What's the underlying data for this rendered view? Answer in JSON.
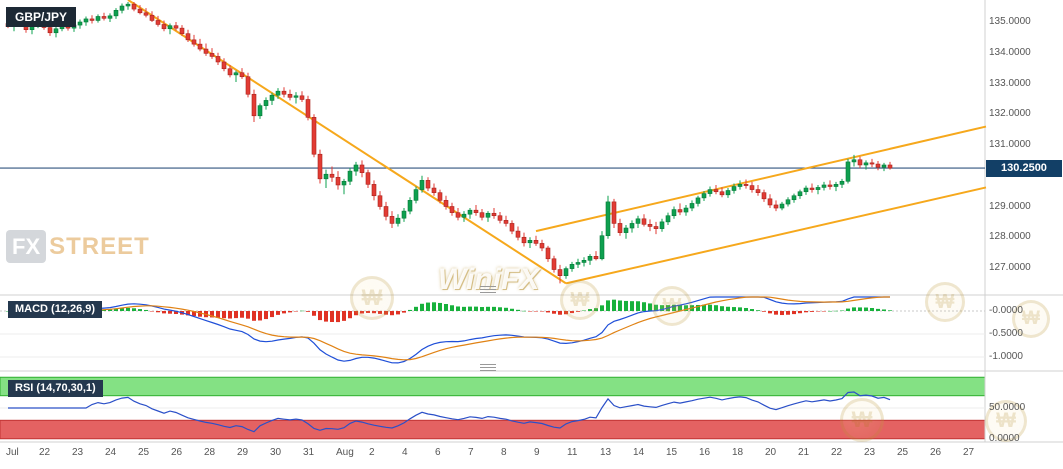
{
  "colors": {
    "up": "#0ea04f",
    "up_border": "#067a38",
    "down": "#e23b34",
    "down_border": "#a8231d",
    "trendline": "#f6a81c",
    "price_line": "#30557f",
    "price_badge_bg": "#123f66",
    "macd_line": "#1f4fd8",
    "signal_line": "#e08214",
    "hist_up": "#18b13c",
    "hist_down": "#e03224",
    "rsi_line": "#2b50c8",
    "rsi_band_green": "#84e184",
    "rsi_band_green_border": "#2faf2f",
    "rsi_band_red": "#e46262",
    "rsi_band_red_border": "#c23333",
    "grid": "#ececec",
    "separator": "#d0d0d0"
  },
  "watermarks": {
    "fx": "FX",
    "street": "STREET",
    "winifx": "WiniFX",
    "coin_symbol": "₩"
  },
  "chart_data": {
    "type": "candlestick",
    "symbol": "GBP/JPY",
    "current_price": {
      "value": 130.25,
      "label": "130.2500"
    },
    "price_axis": {
      "ticks": [
        {
          "value": 135,
          "label": "135.0000"
        },
        {
          "value": 134,
          "label": "134.0000"
        },
        {
          "value": 133,
          "label": "133.0000"
        },
        {
          "value": 132,
          "label": "132.0000"
        },
        {
          "value": 131,
          "label": "131.0000"
        },
        {
          "value": 129,
          "label": "129.0000"
        },
        {
          "value": 128,
          "label": "128.0000"
        },
        {
          "value": 127,
          "label": "127.0000"
        }
      ]
    },
    "x_labels": [
      "Jul",
      "22",
      "23",
      "24",
      "25",
      "26",
      "28",
      "29",
      "30",
      "31",
      "Aug",
      "2",
      "4",
      "6",
      "7",
      "8",
      "9",
      "11",
      "13",
      "14",
      "15",
      "16",
      "18",
      "20",
      "21",
      "22",
      "23",
      "25",
      "26",
      "27"
    ],
    "trendlines": [
      {
        "name": "descending-resistance",
        "from": {
          "i": 20,
          "p": 135.72
        },
        "to": {
          "i": 93,
          "p": 126.5
        }
      },
      {
        "name": "ascending-channel-lower",
        "from": {
          "i": 93,
          "p": 126.5
        },
        "to": {
          "i": 163,
          "p": 129.62
        }
      },
      {
        "name": "ascending-channel-upper",
        "from": {
          "i": 88,
          "p": 128.2
        },
        "to": {
          "i": 163,
          "p": 131.6
        }
      }
    ],
    "indicators": {
      "macd": {
        "label": "MACD (12,26,9)",
        "fast": 12,
        "slow": 26,
        "signal": 9,
        "axis_ticks": [
          {
            "value": 0,
            "label": "-0.0000"
          },
          {
            "value": -0.5,
            "label": "-0.5000"
          },
          {
            "value": -1,
            "label": "-1.0000"
          }
        ]
      },
      "rsi": {
        "label": "RSI (14,70,30,1)",
        "period": 14,
        "upper": 70,
        "lower": 30,
        "axis_ticks": [
          {
            "value": 50,
            "label": "50.0000"
          },
          {
            "value": 0,
            "label": "0.0000"
          }
        ]
      }
    },
    "candles": [
      [
        134.95,
        135.1,
        134.8,
        134.85
      ],
      [
        134.85,
        135.05,
        134.7,
        135.0
      ],
      [
        135.0,
        135.15,
        134.85,
        134.9
      ],
      [
        134.9,
        135.0,
        134.65,
        134.75
      ],
      [
        134.75,
        134.95,
        134.6,
        134.88
      ],
      [
        134.88,
        135.1,
        134.8,
        135.02
      ],
      [
        135.02,
        135.12,
        134.75,
        134.82
      ],
      [
        134.82,
        134.95,
        134.55,
        134.65
      ],
      [
        134.65,
        134.85,
        134.5,
        134.78
      ],
      [
        134.78,
        135.0,
        134.7,
        134.92
      ],
      [
        134.92,
        135.05,
        134.72,
        134.8
      ],
      [
        134.8,
        134.98,
        134.68,
        134.9
      ],
      [
        134.9,
        135.08,
        134.78,
        135.0
      ],
      [
        135.0,
        135.18,
        134.88,
        135.1
      ],
      [
        135.1,
        135.22,
        134.95,
        135.05
      ],
      [
        135.05,
        135.25,
        134.98,
        135.18
      ],
      [
        135.18,
        135.3,
        135.05,
        135.12
      ],
      [
        135.12,
        135.28,
        135.0,
        135.2
      ],
      [
        135.2,
        135.45,
        135.1,
        135.38
      ],
      [
        135.38,
        135.6,
        135.28,
        135.52
      ],
      [
        135.52,
        135.75,
        135.4,
        135.58
      ],
      [
        135.58,
        135.68,
        135.35,
        135.42
      ],
      [
        135.42,
        135.55,
        135.25,
        135.3
      ],
      [
        135.3,
        135.45,
        135.15,
        135.22
      ],
      [
        135.22,
        135.35,
        135.0,
        135.05
      ],
      [
        135.05,
        135.2,
        134.85,
        134.92
      ],
      [
        134.92,
        135.05,
        134.7,
        134.78
      ],
      [
        134.78,
        134.95,
        134.6,
        134.88
      ],
      [
        134.88,
        135.0,
        134.72,
        134.8
      ],
      [
        134.8,
        134.9,
        134.55,
        134.62
      ],
      [
        134.62,
        134.75,
        134.35,
        134.42
      ],
      [
        134.42,
        134.58,
        134.2,
        134.28
      ],
      [
        134.28,
        134.45,
        134.05,
        134.12
      ],
      [
        134.12,
        134.3,
        133.9,
        133.98
      ],
      [
        133.98,
        134.15,
        133.8,
        133.88
      ],
      [
        133.88,
        134.0,
        133.6,
        133.7
      ],
      [
        133.7,
        133.82,
        133.4,
        133.48
      ],
      [
        133.48,
        133.6,
        133.2,
        133.28
      ],
      [
        133.28,
        133.42,
        133.05,
        133.35
      ],
      [
        133.35,
        133.5,
        133.15,
        133.22
      ],
      [
        133.22,
        133.35,
        132.55,
        132.65
      ],
      [
        132.65,
        132.8,
        131.75,
        131.95
      ],
      [
        131.95,
        132.35,
        131.85,
        132.28
      ],
      [
        132.28,
        132.55,
        132.15,
        132.45
      ],
      [
        132.45,
        132.7,
        132.3,
        132.62
      ],
      [
        132.62,
        132.85,
        132.5,
        132.75
      ],
      [
        132.75,
        132.88,
        132.55,
        132.65
      ],
      [
        132.65,
        132.8,
        132.45,
        132.55
      ],
      [
        132.55,
        132.72,
        132.35,
        132.6
      ],
      [
        132.6,
        132.75,
        132.4,
        132.48
      ],
      [
        132.48,
        132.6,
        131.8,
        131.9
      ],
      [
        131.9,
        132.0,
        130.6,
        130.7
      ],
      [
        130.7,
        130.85,
        129.75,
        129.9
      ],
      [
        129.9,
        130.2,
        129.6,
        130.05
      ],
      [
        130.05,
        130.3,
        129.8,
        129.95
      ],
      [
        129.95,
        130.15,
        129.55,
        129.7
      ],
      [
        129.7,
        129.9,
        129.4,
        129.82
      ],
      [
        129.82,
        130.25,
        129.7,
        130.15
      ],
      [
        130.15,
        130.45,
        130.0,
        130.35
      ],
      [
        130.35,
        130.5,
        129.95,
        130.1
      ],
      [
        130.1,
        130.2,
        129.6,
        129.72
      ],
      [
        129.72,
        129.85,
        129.2,
        129.35
      ],
      [
        129.35,
        129.5,
        128.9,
        129.0
      ],
      [
        129.0,
        129.15,
        128.55,
        128.68
      ],
      [
        128.68,
        128.85,
        128.3,
        128.45
      ],
      [
        128.45,
        128.75,
        128.35,
        128.62
      ],
      [
        128.62,
        128.95,
        128.5,
        128.85
      ],
      [
        128.85,
        129.3,
        128.75,
        129.2
      ],
      [
        129.2,
        129.65,
        129.1,
        129.55
      ],
      [
        129.55,
        130.0,
        129.45,
        129.85
      ],
      [
        129.85,
        129.95,
        129.5,
        129.6
      ],
      [
        129.6,
        129.75,
        129.35,
        129.45
      ],
      [
        129.45,
        129.55,
        129.1,
        129.2
      ],
      [
        129.2,
        129.35,
        128.9,
        129.0
      ],
      [
        129.0,
        129.12,
        128.7,
        128.8
      ],
      [
        128.8,
        128.95,
        128.55,
        128.65
      ],
      [
        128.65,
        128.85,
        128.5,
        128.75
      ],
      [
        128.75,
        128.95,
        128.6,
        128.88
      ],
      [
        128.88,
        129.05,
        128.7,
        128.8
      ],
      [
        128.8,
        128.92,
        128.55,
        128.65
      ],
      [
        128.65,
        128.85,
        128.5,
        128.78
      ],
      [
        128.78,
        128.95,
        128.6,
        128.7
      ],
      [
        128.7,
        128.82,
        128.45,
        128.55
      ],
      [
        128.55,
        128.7,
        128.35,
        128.45
      ],
      [
        128.45,
        128.55,
        128.1,
        128.2
      ],
      [
        128.2,
        128.35,
        127.9,
        128.0
      ],
      [
        128.0,
        128.15,
        127.7,
        127.82
      ],
      [
        127.82,
        128.0,
        127.65,
        127.9
      ],
      [
        127.9,
        128.05,
        127.72,
        127.8
      ],
      [
        127.8,
        127.92,
        127.55,
        127.65
      ],
      [
        127.65,
        127.72,
        127.2,
        127.3
      ],
      [
        127.3,
        127.4,
        126.85,
        126.95
      ],
      [
        126.95,
        127.1,
        126.5,
        126.75
      ],
      [
        126.75,
        127.05,
        126.65,
        126.98
      ],
      [
        126.98,
        127.2,
        126.88,
        127.12
      ],
      [
        127.12,
        127.3,
        127.0,
        127.18
      ],
      [
        127.18,
        127.35,
        127.05,
        127.25
      ],
      [
        127.25,
        127.45,
        127.1,
        127.38
      ],
      [
        127.38,
        127.55,
        127.25,
        127.3
      ],
      [
        127.3,
        128.2,
        127.25,
        128.05
      ],
      [
        128.05,
        129.35,
        127.95,
        129.15
      ],
      [
        129.15,
        129.25,
        128.3,
        128.45
      ],
      [
        128.45,
        128.6,
        128.05,
        128.15
      ],
      [
        128.15,
        128.4,
        127.95,
        128.3
      ],
      [
        128.3,
        128.55,
        128.15,
        128.45
      ],
      [
        128.45,
        128.7,
        128.3,
        128.6
      ],
      [
        128.6,
        128.75,
        128.35,
        128.42
      ],
      [
        128.42,
        128.58,
        128.2,
        128.35
      ],
      [
        128.35,
        128.5,
        128.1,
        128.28
      ],
      [
        128.28,
        128.6,
        128.18,
        128.5
      ],
      [
        128.5,
        128.8,
        128.4,
        128.7
      ],
      [
        128.7,
        129.0,
        128.6,
        128.9
      ],
      [
        128.9,
        129.1,
        128.72,
        128.82
      ],
      [
        128.82,
        129.05,
        128.7,
        128.95
      ],
      [
        128.95,
        129.2,
        128.85,
        129.1
      ],
      [
        129.1,
        129.35,
        129.0,
        129.28
      ],
      [
        129.28,
        129.5,
        129.18,
        129.42
      ],
      [
        129.42,
        129.65,
        129.32,
        129.55
      ],
      [
        129.55,
        129.7,
        129.4,
        129.48
      ],
      [
        129.48,
        129.62,
        129.3,
        129.38
      ],
      [
        129.38,
        129.6,
        129.28,
        129.52
      ],
      [
        129.52,
        129.75,
        129.42,
        129.65
      ],
      [
        129.65,
        129.85,
        129.55,
        129.72
      ],
      [
        129.72,
        129.88,
        129.58,
        129.68
      ],
      [
        129.68,
        129.8,
        129.45,
        129.55
      ],
      [
        129.55,
        129.7,
        129.35,
        129.45
      ],
      [
        129.45,
        129.55,
        129.15,
        129.25
      ],
      [
        129.25,
        129.4,
        128.95,
        129.05
      ],
      [
        129.05,
        129.2,
        128.85,
        128.95
      ],
      [
        128.95,
        129.15,
        128.88,
        129.08
      ],
      [
        129.08,
        129.3,
        129.0,
        129.22
      ],
      [
        129.22,
        129.42,
        129.12,
        129.35
      ],
      [
        129.35,
        129.55,
        129.25,
        129.48
      ],
      [
        129.48,
        129.68,
        129.38,
        129.6
      ],
      [
        129.6,
        129.75,
        129.45,
        129.55
      ],
      [
        129.55,
        129.7,
        129.4,
        129.62
      ],
      [
        129.62,
        129.8,
        129.52,
        129.7
      ],
      [
        129.7,
        129.85,
        129.55,
        129.65
      ],
      [
        129.65,
        129.8,
        129.5,
        129.72
      ],
      [
        129.72,
        129.9,
        129.6,
        129.82
      ],
      [
        129.82,
        130.55,
        129.75,
        130.45
      ],
      [
        130.45,
        130.68,
        130.3,
        130.52
      ],
      [
        130.52,
        130.62,
        130.25,
        130.35
      ],
      [
        130.35,
        130.5,
        130.2,
        130.42
      ],
      [
        130.42,
        130.55,
        130.28,
        130.38
      ],
      [
        130.38,
        130.48,
        130.18,
        130.28
      ],
      [
        130.28,
        130.42,
        130.15,
        130.35
      ],
      [
        130.35,
        130.45,
        130.2,
        130.25
      ]
    ]
  }
}
